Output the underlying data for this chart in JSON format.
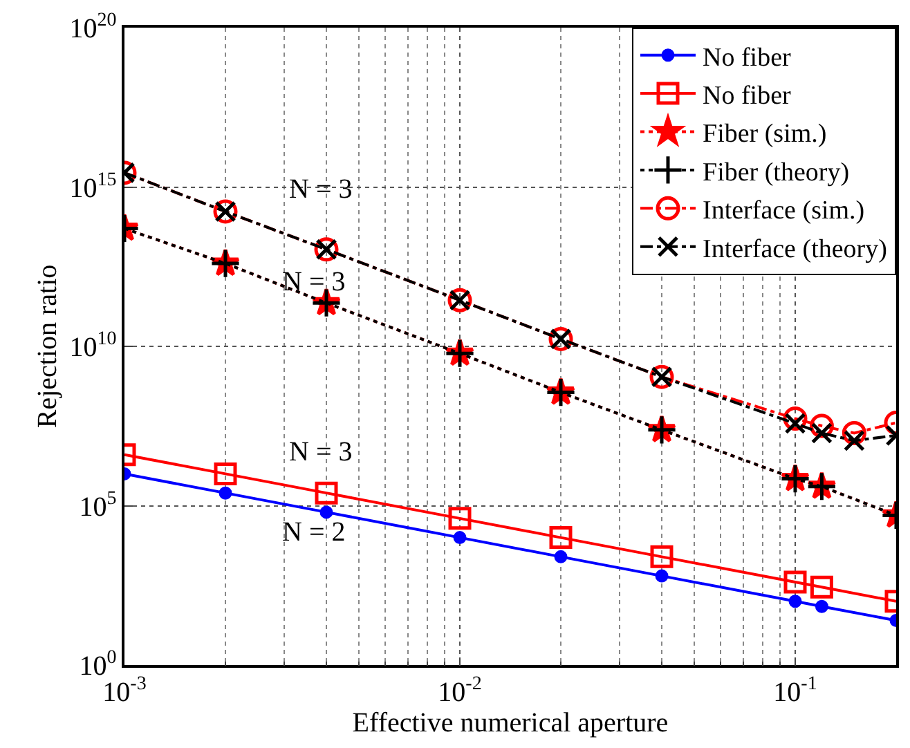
{
  "chart_data": {
    "type": "line",
    "xlabel": "Effective numerical aperture",
    "ylabel": "Rejection ratio",
    "log": "xy",
    "grid": true,
    "legend": "top right",
    "x": [
      0.001,
      0.002,
      0.004,
      0.01,
      0.02,
      0.04,
      0.1,
      0.12,
      0.15,
      0.2
    ],
    "xlim": [
      0.001,
      0.2
    ],
    "xticks": [
      {
        "value": 0.001,
        "label": "10$^{-3}$"
      },
      {
        "value": 0.002,
        "label": null
      },
      {
        "value": 0.003,
        "label": null
      },
      {
        "value": 0.004,
        "label": null
      },
      {
        "value": 0.005,
        "label": null
      },
      {
        "value": 0.006,
        "label": null
      },
      {
        "value": 0.007,
        "label": null
      },
      {
        "value": 0.008,
        "label": null
      },
      {
        "value": 0.009,
        "label": null
      },
      {
        "value": 0.01,
        "label": "10$^{-2}$"
      },
      {
        "value": 0.02,
        "label": null
      },
      {
        "value": 0.03,
        "label": null
      },
      {
        "value": 0.04,
        "label": null
      },
      {
        "value": 0.05,
        "label": null
      },
      {
        "value": 0.06,
        "label": null
      },
      {
        "value": 0.07,
        "label": null
      },
      {
        "value": 0.08,
        "label": null
      },
      {
        "value": 0.09,
        "label": null
      },
      {
        "value": 0.1,
        "label": "10$^{-1}$"
      },
      {
        "value": 0.2,
        "label": null
      }
    ],
    "ylim": [
      1,
      1e+20
    ],
    "yticks": [
      {
        "value": 1,
        "label": "10$^{0}$"
      },
      {
        "value": 100000.0,
        "label": "10$^{5}$"
      },
      {
        "value": 10000000000.0,
        "label": "10$^{10}$"
      },
      {
        "value": 1000000000000000.0,
        "label": "10$^{15}$"
      },
      {
        "value": 1e+20,
        "label": "10$^{20}$"
      }
    ],
    "series": [
      {
        "name": "No fiber",
        "color": "#0000ff",
        "marker": "circle",
        "line_style": "solid",
        "values": [
          1000000,
          250000,
          62500,
          10000,
          2500,
          625,
          100,
          69,
          null,
          25
        ]
      },
      {
        "name": "No fiber",
        "color": "#ff0000",
        "marker": "square",
        "line_style": "solid",
        "values": [
          4000000,
          1000000,
          250000,
          40000,
          10000,
          2500,
          400,
          280,
          null,
          100
        ]
      },
      {
        "name": "Fiber (sim.)",
        "color": "#ff0000",
        "marker": "star",
        "line_style": "dotted",
        "values": [
          50000000000000,
          4000000000000,
          230000000000,
          6000000000,
          360000000,
          24000000,
          700000,
          400000,
          null,
          50000
        ]
      },
      {
        "name": "Fiber (theory)",
        "color": "#000000",
        "marker": "plus",
        "line_style": "dotted",
        "values": [
          50000000000000,
          4000000000000,
          230000000000,
          6000000000,
          360000000,
          24000000,
          700000,
          400000,
          null,
          50000
        ]
      },
      {
        "name": "Interface (sim.)",
        "color": "#ff0000",
        "marker": "circle",
        "line_style": "dashdot",
        "values": [
          2800000000000000,
          170000000000000,
          11000000000000,
          280000000000,
          17000000000,
          1100000000,
          54000000,
          32000000,
          19000000,
          40000000
        ]
      },
      {
        "name": "Interface (theory)",
        "color": "#000000",
        "marker": "cross",
        "line_style": "dashdot",
        "values": [
          2800000000000000,
          170000000000000,
          11000000000000,
          280000000000,
          17000000000,
          1100000000,
          38000000,
          19000000,
          11000000,
          16000000
        ]
      }
    ],
    "annotations": [
      "N = 3",
      "N = 3",
      "N = 3",
      "N = 2"
    ]
  }
}
